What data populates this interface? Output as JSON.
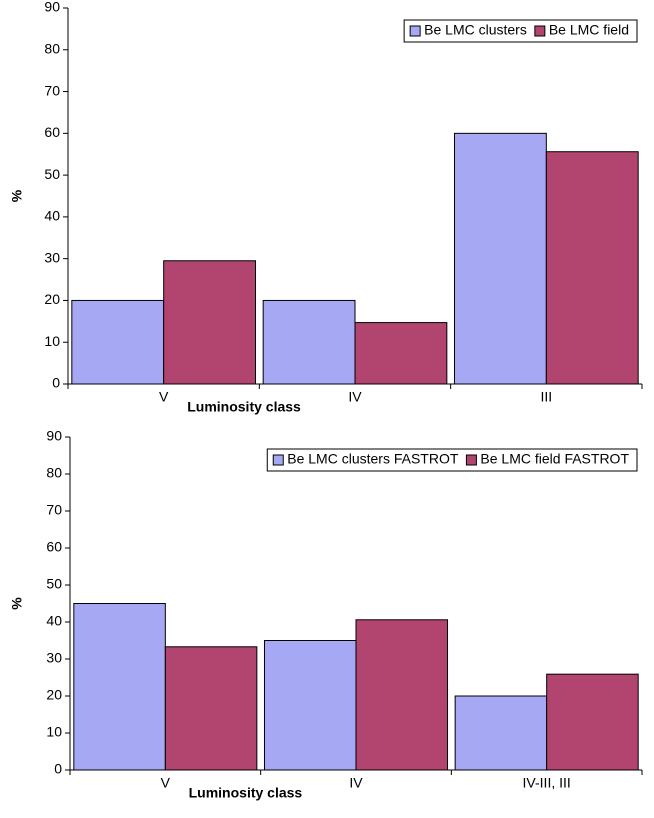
{
  "chart_data": [
    {
      "type": "bar",
      "categories": [
        "V",
        "IV",
        "III"
      ],
      "xlabel": "Luminosity class",
      "ylabel": "%",
      "series": [
        {
          "name": "Be LMC clusters",
          "color": "#a6a8f4",
          "values": [
            20,
            20,
            60
          ]
        },
        {
          "name": "Be LMC field",
          "color": "#b24470",
          "values": [
            29.5,
            14.7,
            55.6
          ]
        }
      ],
      "ylim": [
        0,
        90
      ],
      "yticks": [
        0,
        10,
        20,
        30,
        40,
        50,
        60,
        70,
        80,
        90
      ],
      "grid": false,
      "legend": "upper right"
    },
    {
      "type": "bar",
      "categories": [
        "V",
        "IV",
        "IV-III, III"
      ],
      "xlabel": "Luminosity class",
      "ylabel": "%",
      "series": [
        {
          "name": "Be LMC clusters FASTROT",
          "color": "#a6a8f4",
          "values": [
            45,
            35,
            20
          ]
        },
        {
          "name": "Be LMC field FASTROT",
          "color": "#b24470",
          "values": [
            33.3,
            40.6,
            25.9
          ]
        }
      ],
      "ylim": [
        0,
        90
      ],
      "yticks": [
        0,
        10,
        20,
        30,
        40,
        50,
        60,
        70,
        80,
        90
      ],
      "grid": false,
      "legend": "upper right"
    }
  ]
}
